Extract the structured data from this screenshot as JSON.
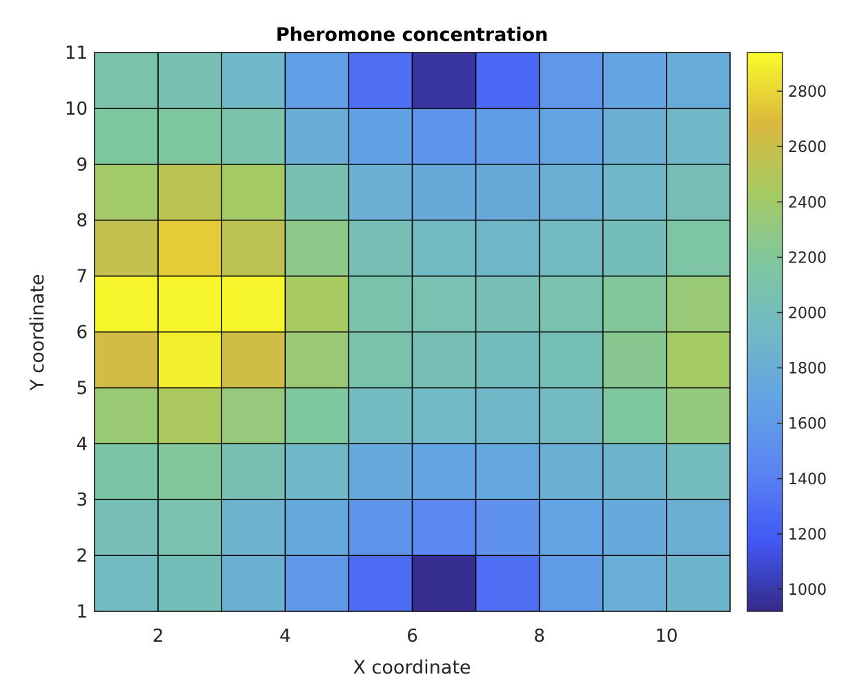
{
  "chart_data": {
    "type": "heatmap",
    "title": "Pheromone concentration",
    "xlabel": "X coordinate",
    "ylabel": "Y coordinate",
    "xlim": [
      1,
      11
    ],
    "ylim": [
      1,
      11
    ],
    "x_ticks": [
      "2",
      "4",
      "6",
      "8",
      "10"
    ],
    "y_ticks": [
      "1",
      "2",
      "3",
      "4",
      "5",
      "6",
      "7",
      "8",
      "9",
      "10",
      "11"
    ],
    "colorbar": {
      "colormap": "parula",
      "min": 920,
      "max": 2940,
      "ticks": [
        "1000",
        "1200",
        "1400",
        "1600",
        "1800",
        "2000",
        "2200",
        "2400",
        "2600",
        "2800"
      ]
    },
    "grid_rows_note": "rows ordered from y=1-2 (bottom) to y=10-11 (top); columns x=1-2 ... x=10-11",
    "values": [
      [
        1960,
        2010,
        1830,
        1590,
        1290,
        940,
        1300,
        1610,
        1800,
        1880
      ],
      [
        2030,
        2090,
        1860,
        1730,
        1560,
        1460,
        1540,
        1680,
        1750,
        1820
      ],
      [
        2130,
        2200,
        2060,
        1920,
        1750,
        1690,
        1720,
        1810,
        1880,
        1990
      ],
      [
        2360,
        2460,
        2330,
        2180,
        1960,
        1930,
        1920,
        1970,
        2180,
        2320
      ],
      [
        2640,
        2890,
        2620,
        2350,
        2100,
        2040,
        1990,
        2020,
        2240,
        2420
      ],
      [
        2920,
        2920,
        2920,
        2440,
        2100,
        2070,
        2040,
        2090,
        2200,
        2350
      ],
      [
        2570,
        2760,
        2540,
        2270,
        2030,
        1940,
        1910,
        1960,
        2010,
        2140
      ],
      [
        2410,
        2540,
        2420,
        2060,
        1830,
        1760,
        1760,
        1820,
        1910,
        2030
      ],
      [
        2170,
        2170,
        2110,
        1790,
        1670,
        1560,
        1620,
        1690,
        1830,
        1910
      ],
      [
        2100,
        2050,
        1910,
        1650,
        1300,
        980,
        1270,
        1580,
        1690,
        1770
      ]
    ]
  }
}
